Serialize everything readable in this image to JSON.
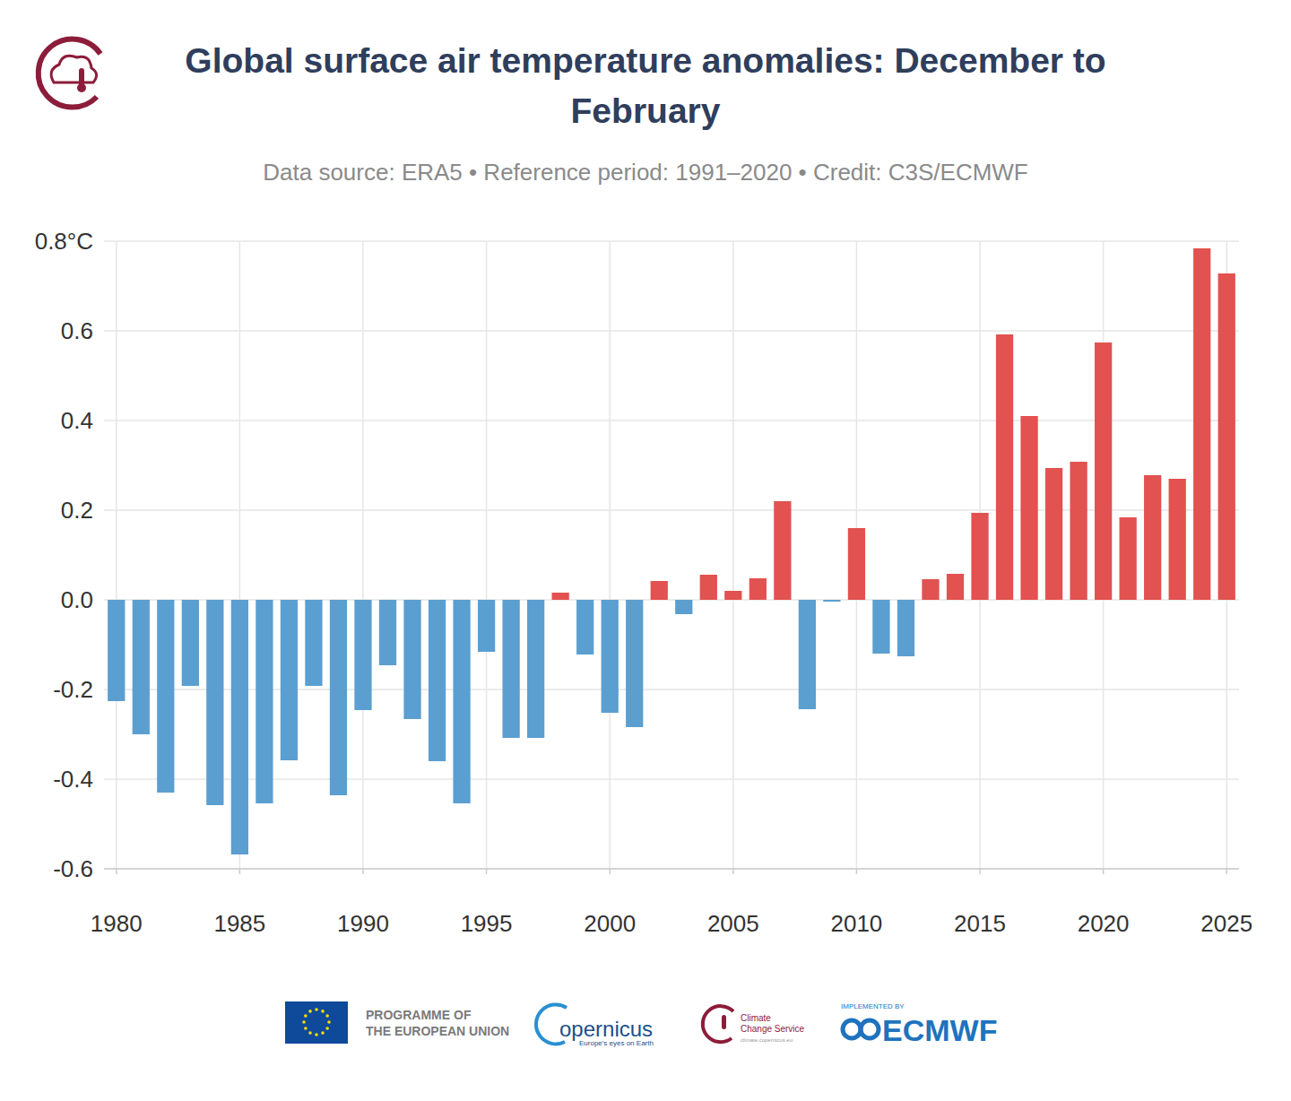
{
  "chart_data": {
    "type": "bar",
    "title": "Global surface air temperature anomalies: December to February",
    "subtitle": "Data source: ERA5 • Reference period: 1991–2020 • Credit: C3S/ECMWF",
    "x": [
      1980,
      1981,
      1982,
      1983,
      1984,
      1985,
      1986,
      1987,
      1988,
      1989,
      1990,
      1991,
      1992,
      1993,
      1994,
      1995,
      1996,
      1997,
      1998,
      1999,
      2000,
      2001,
      2002,
      2003,
      2004,
      2005,
      2006,
      2007,
      2008,
      2009,
      2010,
      2011,
      2012,
      2013,
      2014,
      2015,
      2016,
      2017,
      2018,
      2019,
      2020,
      2021,
      2022,
      2023,
      2024,
      2025
    ],
    "values": [
      -0.226,
      -0.3,
      -0.43,
      -0.192,
      -0.458,
      -0.568,
      -0.454,
      -0.358,
      -0.192,
      -0.436,
      -0.246,
      -0.146,
      -0.266,
      -0.36,
      -0.454,
      -0.116,
      -0.308,
      -0.308,
      0.016,
      -0.122,
      -0.252,
      -0.284,
      0.042,
      -0.032,
      0.056,
      0.02,
      0.048,
      0.22,
      -0.244,
      -0.004,
      0.16,
      -0.12,
      -0.126,
      0.046,
      0.058,
      0.194,
      0.592,
      0.41,
      0.294,
      0.308,
      0.574,
      0.184,
      0.278,
      0.27,
      0.784,
      0.728
    ],
    "colors": [
      "#5b9fd1",
      "#5b9fd1",
      "#5b9fd1",
      "#5b9fd1",
      "#5b9fd1",
      "#5b9fd1",
      "#5b9fd1",
      "#5b9fd1",
      "#5b9fd1",
      "#5b9fd1",
      "#5b9fd1",
      "#5b9fd1",
      "#5b9fd1",
      "#5b9fd1",
      "#5b9fd1",
      "#5b9fd1",
      "#5b9fd1",
      "#5b9fd1",
      "#e25250",
      "#5b9fd1",
      "#5b9fd1",
      "#5b9fd1",
      "#e25250",
      "#5b9fd1",
      "#e25250",
      "#e25250",
      "#e25250",
      "#e25250",
      "#5b9fd1",
      "#5b9fd1",
      "#e25250",
      "#5b9fd1",
      "#5b9fd1",
      "#e25250",
      "#e25250",
      "#e25250",
      "#e25250",
      "#e25250",
      "#e25250",
      "#e25250",
      "#e25250",
      "#e25250",
      "#e25250",
      "#e25250",
      "#e25250",
      "#e25250"
    ],
    "xlim": [
      1979.5,
      2025.5
    ],
    "xticks": [
      1980,
      1985,
      1990,
      1995,
      2000,
      2005,
      2010,
      2015,
      2020,
      2025
    ],
    "ylim": [
      -0.6,
      0.8
    ],
    "yticks": [
      -0.6,
      -0.4,
      -0.2,
      {
        "value": 0,
        "label": "0.0"
      },
      0.2,
      0.4,
      0.6,
      {
        "value": 0.8,
        "label": "0.8°C"
      }
    ],
    "grid": true
  },
  "logos": {
    "eu": [
      "PROGRAMME OF",
      "THE EUROPEAN UNION"
    ],
    "copernicus": "opernicus",
    "copernicus_tagline": "Europe's eyes on Earth",
    "c3s": [
      "Climate",
      "Change Service"
    ],
    "c3s_url": "climate.copernicus.eu",
    "ecmwf_top": "IMPLEMENTED BY",
    "ecmwf": "ECMWF"
  }
}
